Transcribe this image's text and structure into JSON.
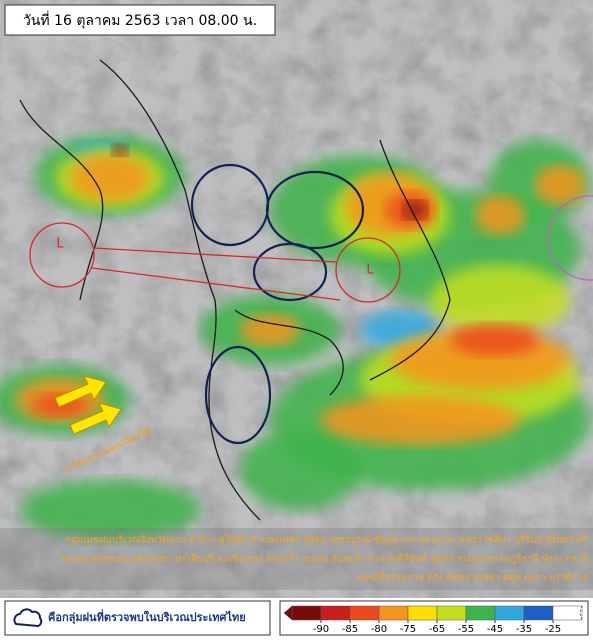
{
  "header": {
    "title": "วันที่ 16 ตุลาคม 2563 เวลา 08.00 น."
  },
  "map": {
    "low_labels": [
      "L",
      "L"
    ],
    "monsoon_label": "มรสุมตะวันตกเฉียงใต้"
  },
  "description": [
    "กลุ่มเมฆฝนบริเวณจังหวัดตาก ลำปาง สุโขทัย กำแพงเพชร พิจิตร เพชรบูรณ์ ชัยภูมิ เลย ขอนแก่น นครราชสีมา บุรีรัมย์ สุรินทร์ ศรี",
    "สะเกษ นครพนม นครนายก ปราจีนบุรี ฉะเชิงเทรา สระแก้ว ระยอง จันทบุรี ประจวบคีรีขันธ์ ชุมพร ระนอง สุราษฎร์ธานี พังงา กระบี่",
    "นครศรีธรรมราช ตรัง พัทลุง สงขลา สตูล ยะลา นราธิวาส"
  ],
  "legend": {
    "text": "คือกลุ่มฝนที่ตรวจพบในบริเวณประเทศไทย"
  },
  "colorbar": {
    "ticks": [
      -90,
      -85,
      -80,
      -75,
      -65,
      -55,
      -45,
      -35,
      -25
    ],
    "colors": [
      "#7a0a0a",
      "#c81e1e",
      "#ec4a1c",
      "#f7941d",
      "#ffdf00",
      "#c4e01c",
      "#3cb44a",
      "#2fa8e0",
      "#1c5fc8",
      "#ffffff"
    ]
  }
}
